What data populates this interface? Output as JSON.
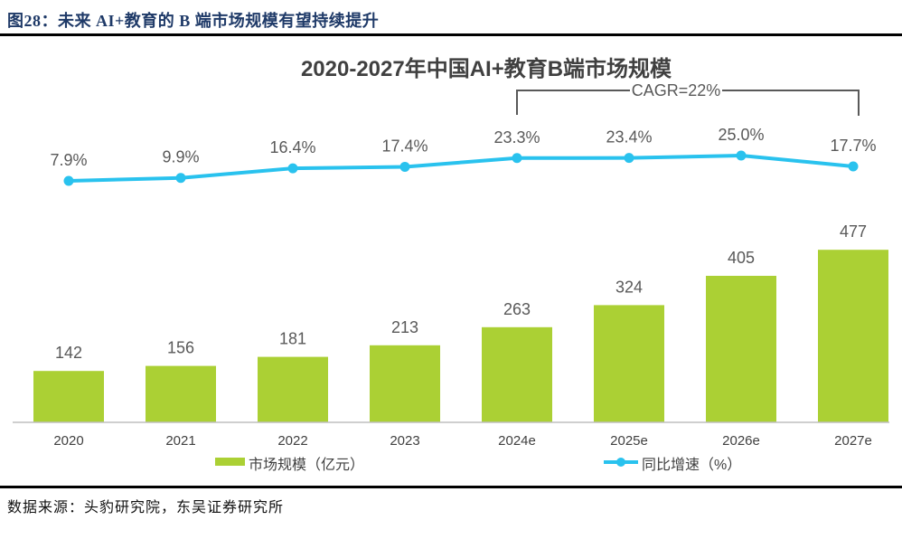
{
  "figure": {
    "caption": "图28：未来 AI+教育的 B 端市场规模有望持续提升",
    "source": "数据来源：头豹研究院，东吴证券研究所"
  },
  "chart_data": {
    "type": "combo-bar-line",
    "title": "2020-2027年中国AI+教育B端市场规模",
    "categories": [
      "2020",
      "2021",
      "2022",
      "2023",
      "2024e",
      "2025e",
      "2026e",
      "2027e"
    ],
    "series": [
      {
        "name": "市场规模（亿元）",
        "type": "bar",
        "values": [
          142,
          156,
          181,
          213,
          263,
          324,
          405,
          477
        ],
        "labels": [
          "142",
          "156",
          "181",
          "213",
          "263",
          "324",
          "405",
          "477"
        ],
        "color": "#abd034"
      },
      {
        "name": "同比增速（%）",
        "type": "line",
        "values": [
          7.9,
          9.9,
          16.4,
          17.4,
          23.3,
          23.4,
          25.0,
          17.7
        ],
        "labels": [
          "7.9%",
          "9.9%",
          "16.4%",
          "17.4%",
          "23.3%",
          "23.4%",
          "25.0%",
          "17.7%"
        ],
        "color": "#29c2ee"
      }
    ],
    "annotation": {
      "text": "CAGR=22%",
      "span": [
        "2024e",
        "2027e"
      ]
    },
    "ylim": [
      0,
      500
    ],
    "y2_visible_range_pct": [
      7.9,
      25.0
    ],
    "grid": false,
    "legend_position": "bottom"
  },
  "theme": {
    "header_text": "#1f3a68",
    "chart_title": "#404040",
    "bar_label": "#595959",
    "line_label": "#595959",
    "axis_line": "#bfbfbf",
    "axis_label": "#404040",
    "annotation": "#595959",
    "rule": "#000000"
  }
}
